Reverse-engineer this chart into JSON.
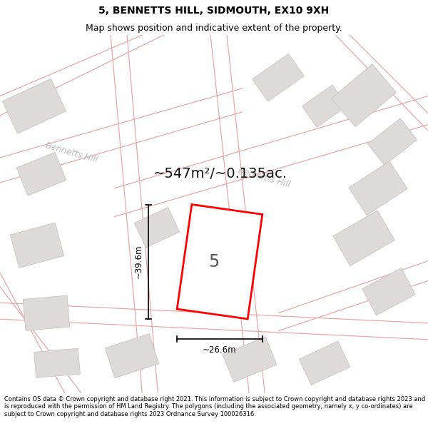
{
  "title": "5, BENNETTS HILL, SIDMOUTH, EX10 9XH",
  "subtitle": "Map shows position and indicative extent of the property.",
  "footer": "Contains OS data © Crown copyright and database right 2021. This information is subject to Crown copyright and database rights 2023 and is reproduced with the permission of HM Land Registry. The polygons (including the associated geometry, namely x, y co-ordinates) are subject to Crown copyright and database rights 2023 Ordnance Survey 100026316.",
  "map_bg": "#eeecec",
  "road_line_color": "#e8a8a8",
  "building_color": "#dedada",
  "building_edge": "#c8c4c4",
  "plot_color": "#ffffff",
  "plot_edge": "#ff0000",
  "street_label_color": "#bbbbbb",
  "area_label": "~547m²/~0.135ac.",
  "dim_width": "~26.6m",
  "dim_height": "~39.6m",
  "plot_label": "5",
  "title_fontsize": 10,
  "subtitle_fontsize": 9,
  "footer_fontsize": 6
}
